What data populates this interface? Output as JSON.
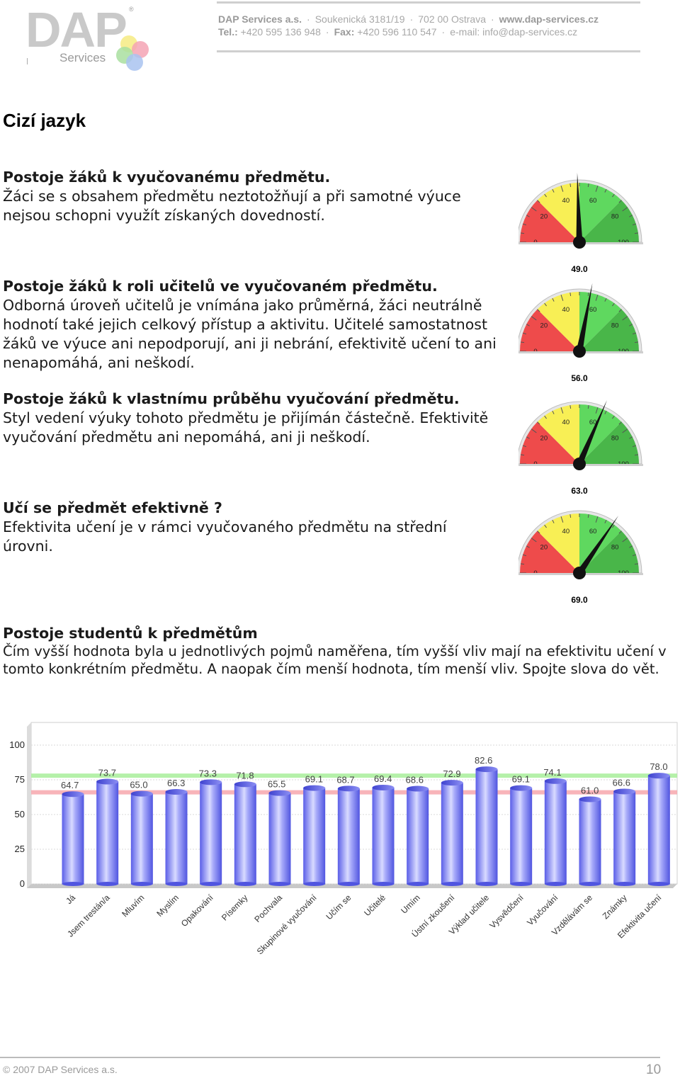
{
  "header": {
    "logo_text": "DAP",
    "logo_registered": "®",
    "logo_sub": "Services",
    "company": "DAP Services a.s.",
    "address_street": "Soukenická 3181/19",
    "address_city": "702 00 Ostrava",
    "website": "www.dap-services.cz",
    "tel_label": "Tel.:",
    "tel": "+420 595 136 948",
    "fax_label": "Fax:",
    "fax": "+420 596 110 547",
    "email": "e-mail: info@dap-services.cz"
  },
  "page_title": "Cizí jazyk",
  "sections": [
    {
      "title": "Postoje žáků k vyučovanému předmětu.",
      "body": "Žáci se s obsahem předmětu neztotožňují a při samotné výuce nejsou schopni využít získaných dovedností.",
      "gauge_value": 49.0,
      "gauge_label": "49.0"
    },
    {
      "title": "Postoje žáků k roli učitelů ve vyučovaném předmětu.",
      "body": "Odborná úroveň učitelů je vnímána jako průměrná, žáci neutrálně hodnotí také jejich celkový přístup a aktivitu. Učitelé samostatnost žáků ve výuce ani nepodporují, ani ji nebrání, efektivitě učení to ani nenapomáhá, ani neškodí.",
      "gauge_value": 56.0,
      "gauge_label": "56.0"
    },
    {
      "title": "Postoje žáků k vlastnímu průběhu vyučování předmětu.",
      "body": "Styl vedení výuky tohoto předmětu je přijímán částečně. Efektivitě vyučování předmětu ani nepomáhá, ani ji neškodí.",
      "gauge_value": 63.0,
      "gauge_label": "63.0"
    },
    {
      "title": "Učí se předmět efektivně ?",
      "body": "Efektivita učení je v rámci vyučovaného předmětu na střední úrovni.",
      "gauge_value": 69.0,
      "gauge_label": "69.0"
    }
  ],
  "gauge_ticks": [
    "0",
    "20",
    "40",
    "60",
    "80",
    "100"
  ],
  "students": {
    "title": "Postoje studentů k předmětům",
    "body": "Čím vyšší hodnota byla u jednotlivých pojmů naměřena, tím vyšší vliv mají na efektivitu učení v tomto konkrétním předmětu. A naopak čím menší hodnota, tím menší vliv. Spojte slova do vět."
  },
  "chart_data": {
    "type": "bar",
    "categories": [
      "Já",
      "Jsem trestán/a",
      "Mluvím",
      "Myslím",
      "Opakování",
      "Písemky",
      "Pochvala",
      "Skupinové vyučování",
      "Učím se",
      "Učitelé",
      "Umím",
      "Ústní zkoušení",
      "Výklad učitele",
      "Vysvědčení",
      "Vyučování",
      "Vzdělávám se",
      "Známky",
      "Efektivita učení"
    ],
    "values": [
      64.7,
      73.7,
      65.0,
      66.3,
      73.3,
      71.8,
      65.5,
      69.1,
      68.7,
      69.4,
      68.6,
      72.9,
      82.6,
      69.1,
      74.1,
      61.0,
      66.6,
      78.0
    ],
    "value_labels": [
      "64.7",
      "73.7",
      "65.0",
      "66.3",
      "73.3",
      "71.8",
      "65.5",
      "69.1",
      "68.7",
      "69.4",
      "68.6",
      "72.9",
      "82.6",
      "69.1",
      "74.1",
      "61.0",
      "66.6",
      "78.0"
    ],
    "yticks": [
      "0",
      "25",
      "50",
      "75",
      "100"
    ],
    "ylim": [
      0,
      100
    ],
    "reference_lines": [
      {
        "value": 78,
        "color": "#a8ef9a"
      },
      {
        "value": 66,
        "color": "#f7a7ad"
      }
    ],
    "bar_color": "#6a6ff0",
    "grid": true
  },
  "footer": {
    "copyright": "© 2007 DAP Services a.s.",
    "page_number": "10"
  }
}
